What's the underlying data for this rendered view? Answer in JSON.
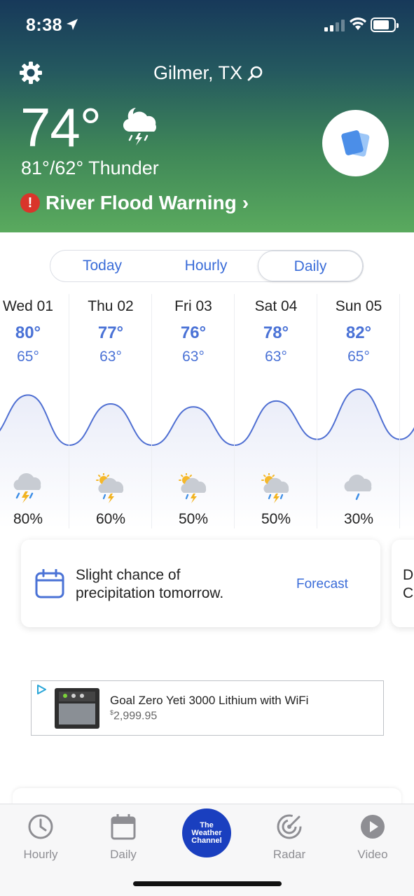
{
  "status_bar": {
    "time": "8:38"
  },
  "header": {
    "location": "Gilmer, TX",
    "temperature": "74°",
    "hilo_condition": "81°/62° Thunder",
    "alert": "River Flood Warning",
    "alert_chevron": "›"
  },
  "tabs": [
    {
      "label": "Today"
    },
    {
      "label": "Hourly"
    },
    {
      "label": "Daily"
    }
  ],
  "active_tab": "Daily",
  "daily": [
    {
      "day": "Wed 01",
      "high": "80°",
      "low": "65°",
      "precip": "80%",
      "icon": "thunderstorm-icon"
    },
    {
      "day": "Thu 02",
      "high": "77°",
      "low": "63°",
      "precip": "60%",
      "icon": "sun-cloud-storm-icon"
    },
    {
      "day": "Fri 03",
      "high": "76°",
      "low": "63°",
      "precip": "50%",
      "icon": "sun-cloud-storm-icon"
    },
    {
      "day": "Sat 04",
      "high": "78°",
      "low": "63°",
      "precip": "50%",
      "icon": "sun-cloud-rain-icon"
    },
    {
      "day": "Sun 05",
      "high": "82°",
      "low": "65°",
      "precip": "30%",
      "icon": "cloud-rain-icon"
    }
  ],
  "insight": {
    "text": "Slight chance of precipitation tomorrow.",
    "link": "Forecast",
    "next_peek": "D\nC"
  },
  "ad": {
    "title": "Goal Zero Yeti 3000 Lithium with WiFi",
    "currency": "$",
    "price": "2,999.95"
  },
  "bottom_nav": [
    {
      "label": "Hourly",
      "icon": "clock-icon"
    },
    {
      "label": "Daily",
      "icon": "calendar-icon"
    },
    {
      "label": "The Weather Channel",
      "icon": "twc-logo"
    },
    {
      "label": "Radar",
      "icon": "radar-icon"
    },
    {
      "label": "Video",
      "icon": "play-icon"
    }
  ],
  "colors": {
    "accent_blue": "#3a6cd8",
    "header_top": "#17395a",
    "header_bottom": "#5aaa5e",
    "alert_red": "#d9352b",
    "twc_blue": "#1a3fbf"
  }
}
